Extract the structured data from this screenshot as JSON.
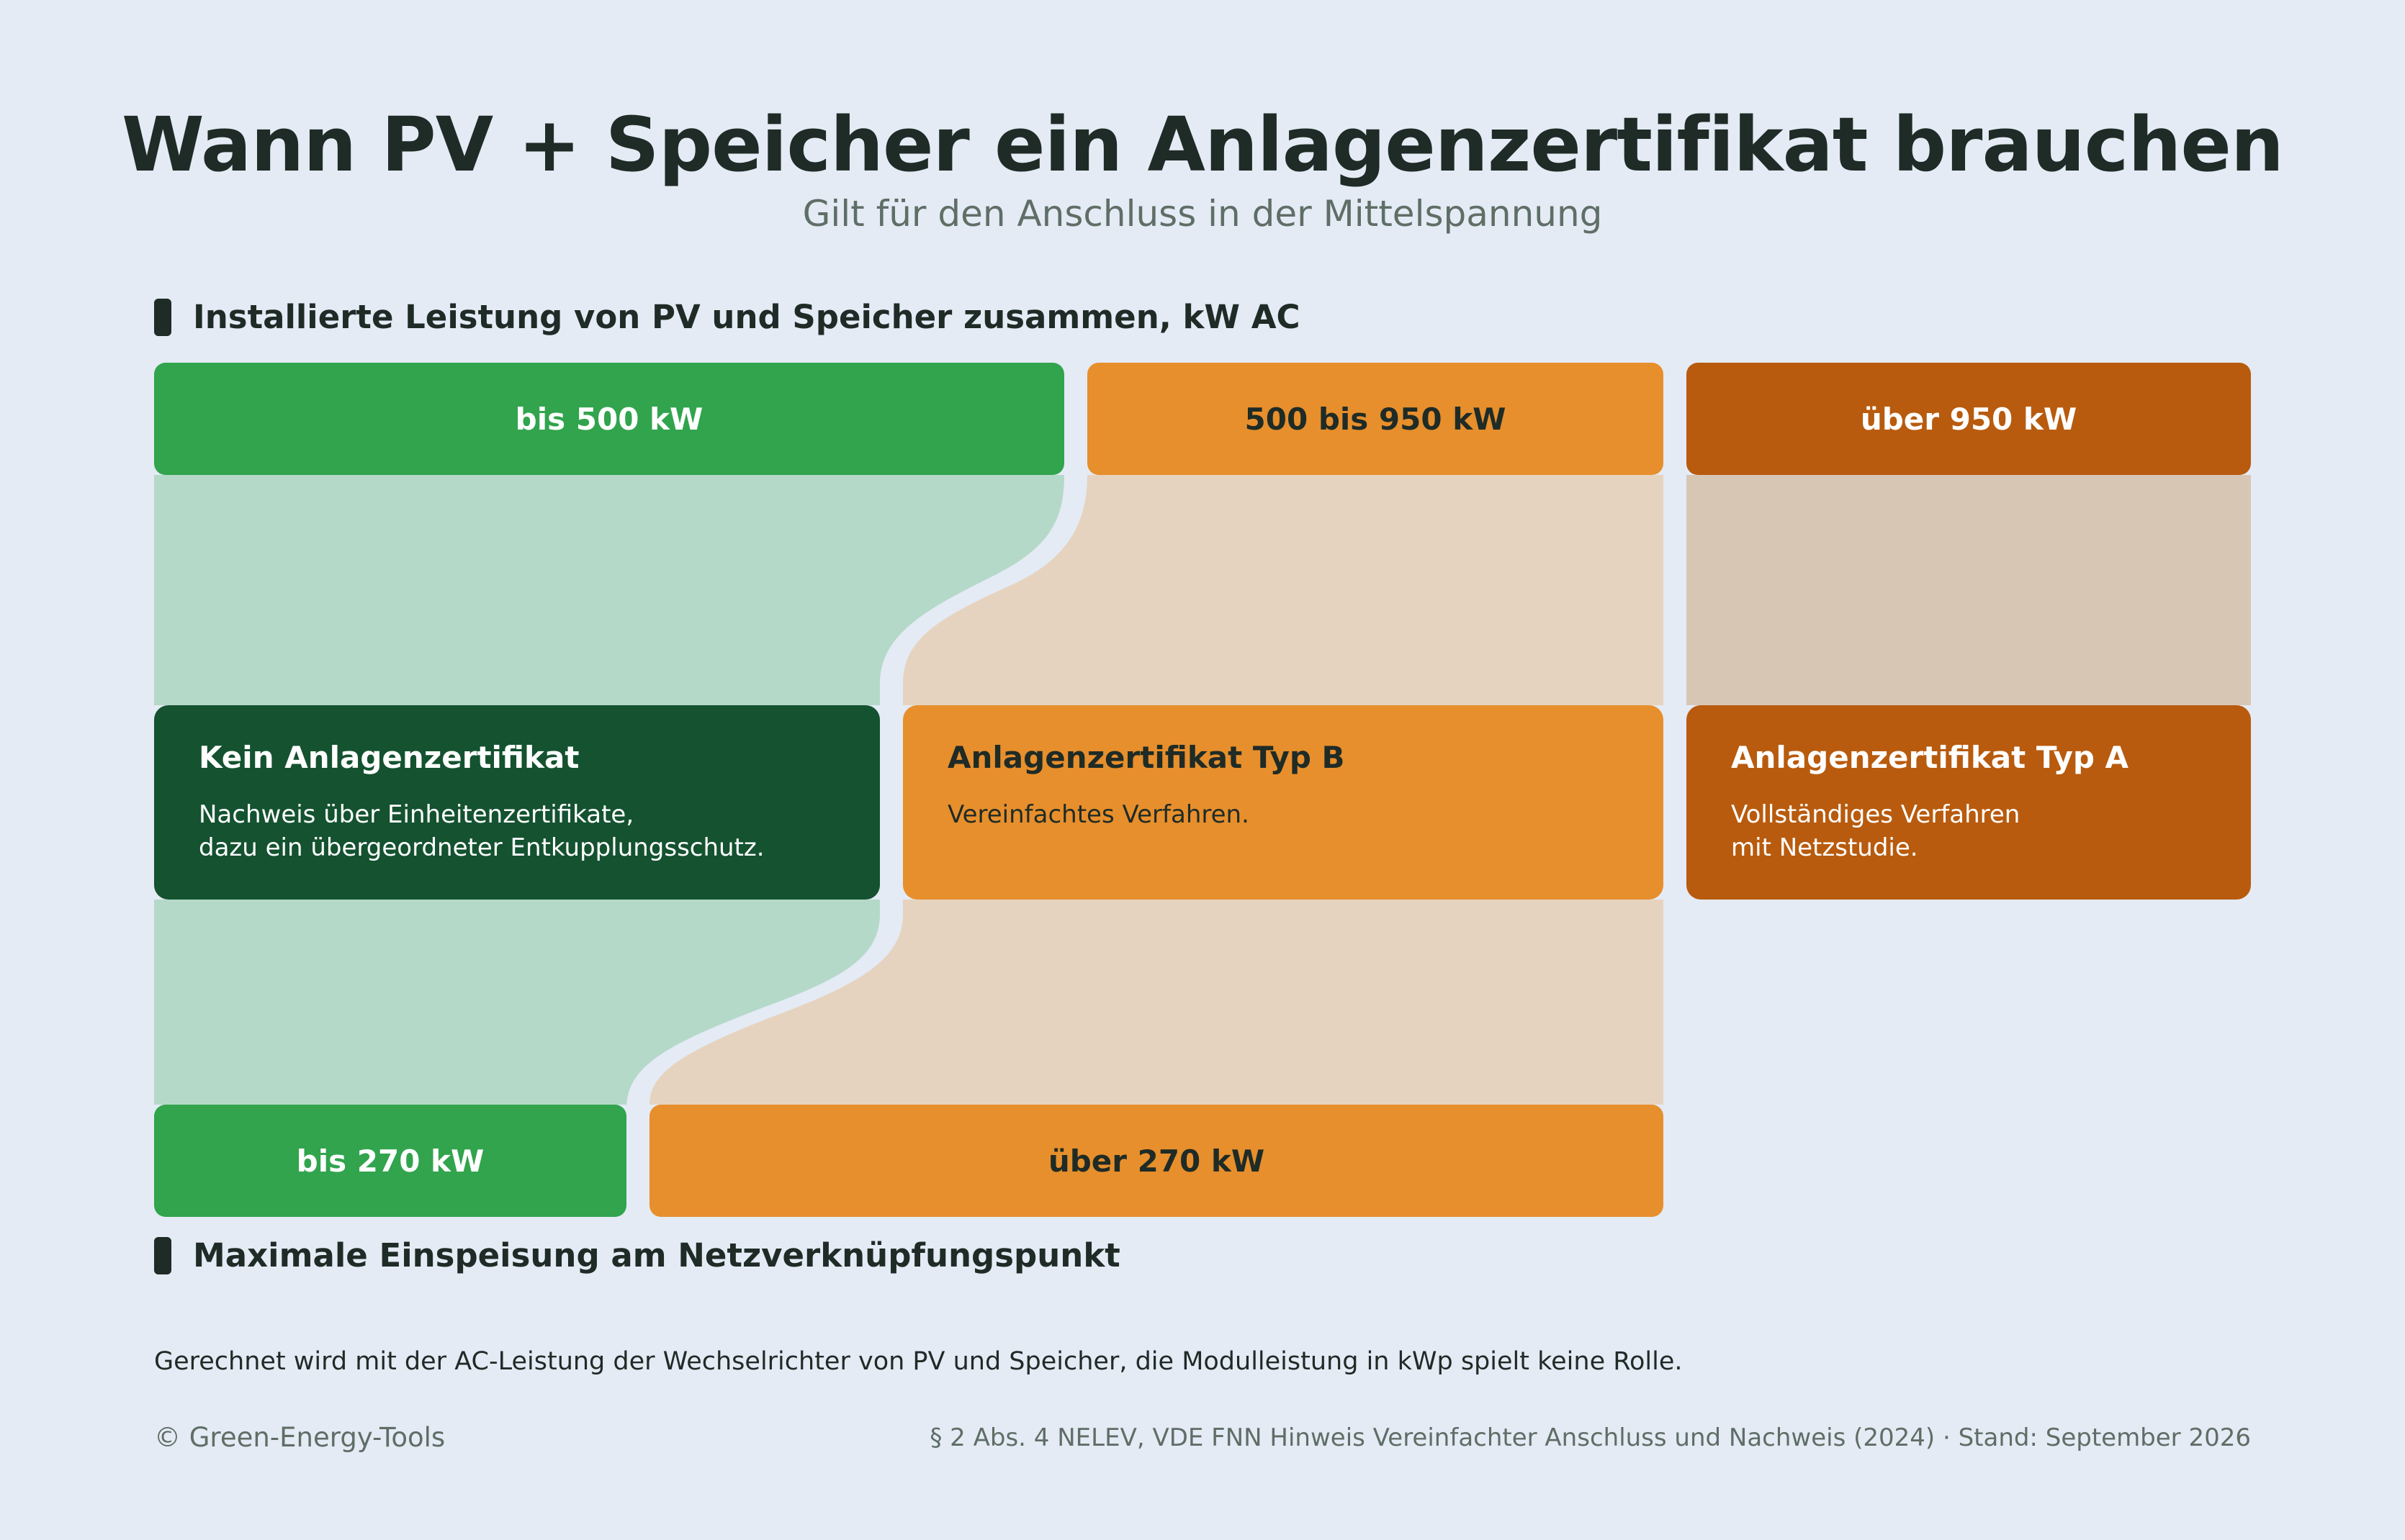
{
  "title": "Wann PV + Speicher ein Anlagenzertifikat brauchen",
  "subtitle": "Gilt für den Anschluss in der Mittelspannung",
  "top_axis": {
    "label": "Installierte Leistung von PV und Speicher zusammen, kW AC",
    "bands": [
      "bis 500 kW",
      "500 bis 950 kW",
      "über 950 kW"
    ]
  },
  "results": [
    {
      "title": "Kein Anlagenzertifikat",
      "lines": [
        "Nachweis über Einheitenzertifikate,",
        "dazu ein übergeordneter Entkupplungsschutz."
      ]
    },
    {
      "title": "Anlagenzertifikat Typ B",
      "lines": [
        "Vereinfachtes Verfahren."
      ]
    },
    {
      "title": "Anlagenzertifikat Typ A",
      "lines": [
        "Vollständiges Verfahren",
        "mit Netzstudie."
      ]
    }
  ],
  "bottom_axis": {
    "label": "Maximale Einspeisung am Netzverknüpfungspunkt",
    "bands": [
      "bis 270 kW",
      "über 270 kW"
    ]
  },
  "footnote": "Gerechnet wird mit der AC-Leistung der Wechselrichter von PV und Speicher, die Modulleistung in kWp spielt keine Rolle.",
  "credit": "© Green-Energy-Tools",
  "source": "§ 2 Abs. 4 NELEV, VDE FNN Hinweis Vereinfachter Anschluss und Nachweis (2024) · Stand: September 2026",
  "colors": {
    "background": "#e4ebf5",
    "green": "#31a44d",
    "dark_green": "#145230",
    "orange": "#e78f2c",
    "dark_orange": "#b85b0e",
    "green_flow": "#b5d9c8",
    "orange_flow": "#e6d3bf",
    "brown_flow": "#d8c6b5"
  }
}
